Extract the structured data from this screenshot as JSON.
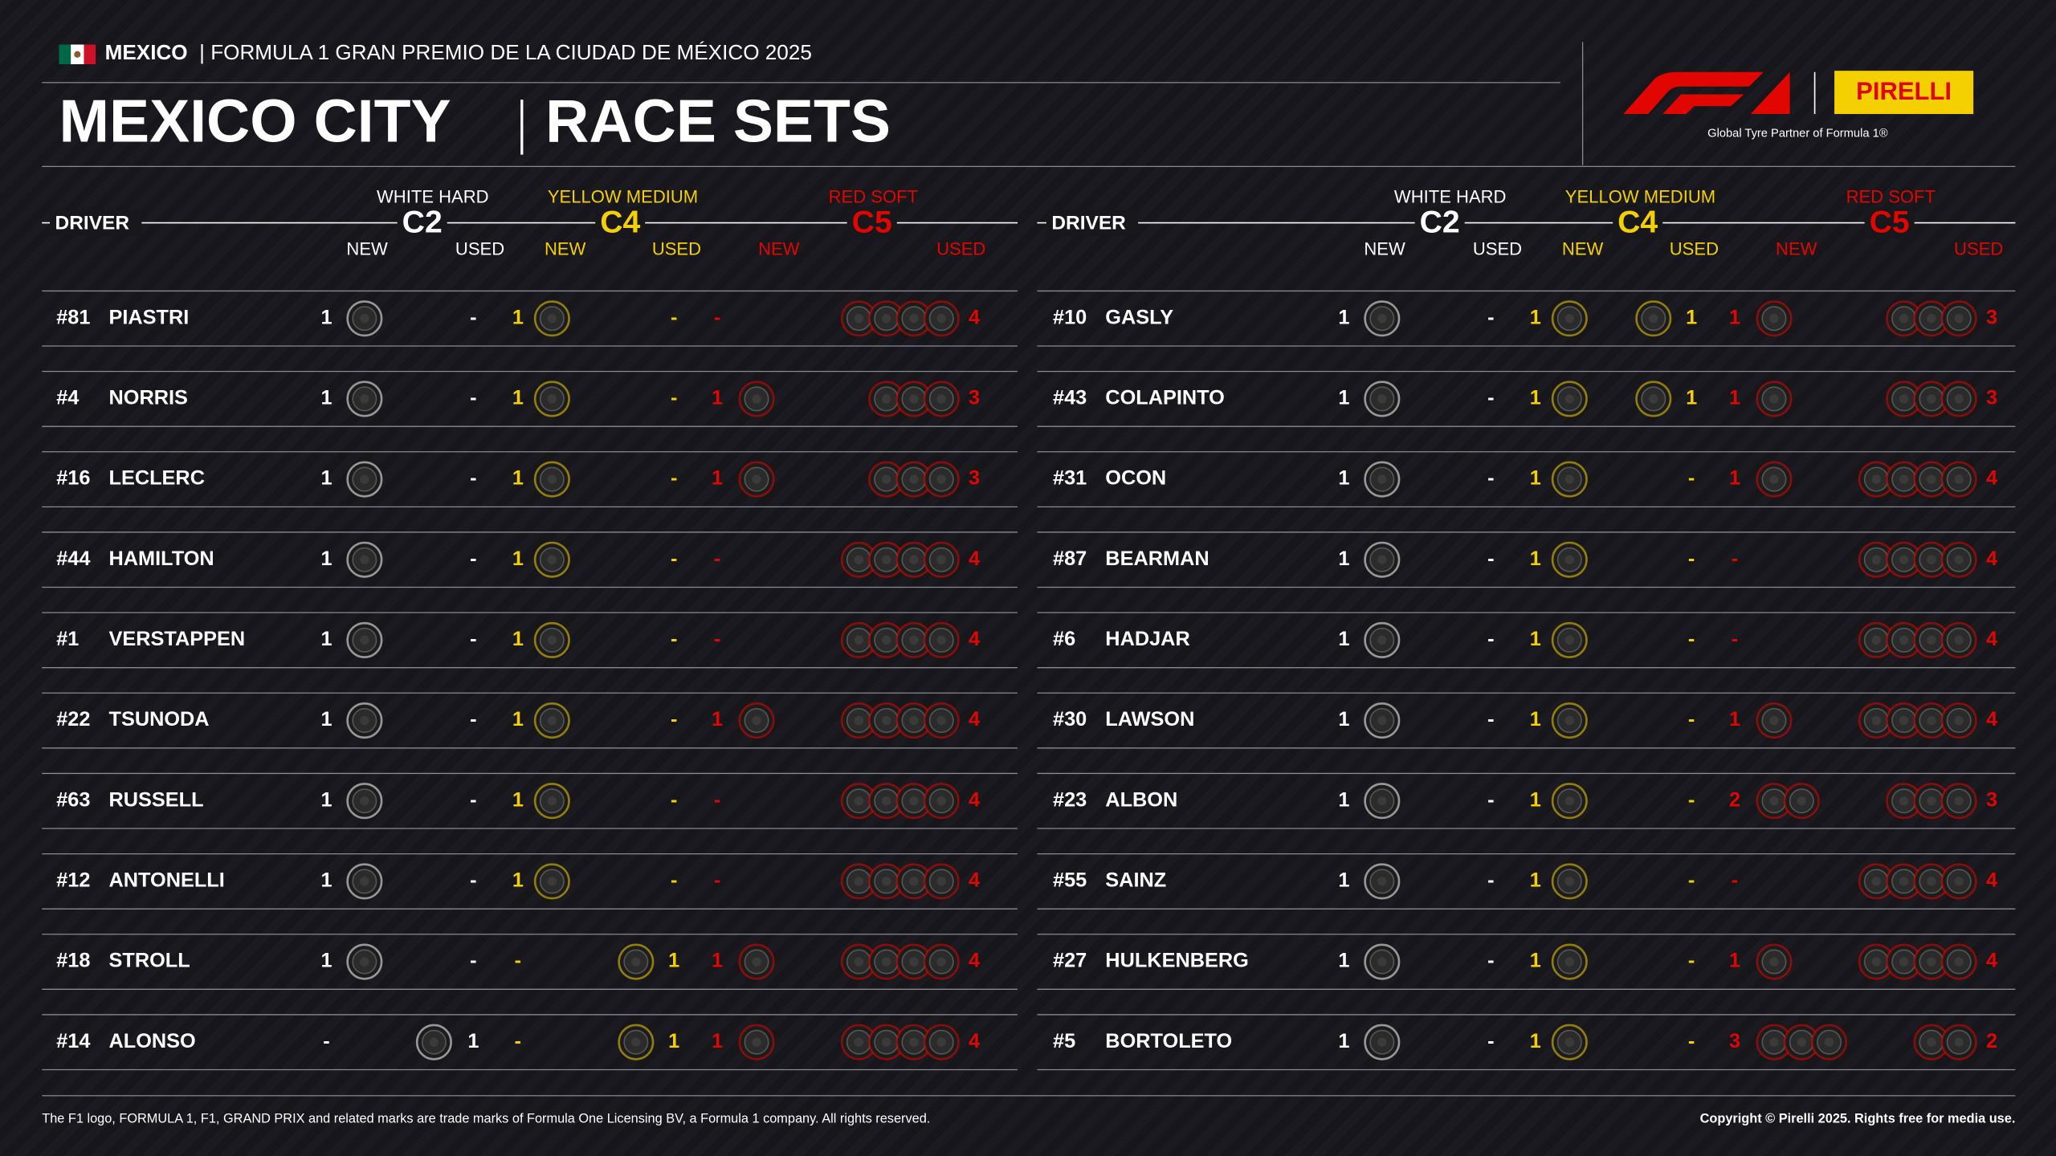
{
  "header": {
    "country": "MEXICO",
    "event": "| FORMULA 1 GRAN PREMIO DE LA CIUDAD DE MÉXICO 2025",
    "title": "MEXICO CITY",
    "subtitle": "RACE SETS",
    "brand": "PIRELLI",
    "partner": "Global Tyre Partner of Formula 1®"
  },
  "columns": {
    "driver": "DRIVER",
    "new": "NEW",
    "used": "USED",
    "compounds": [
      {
        "label": "WHITE HARD",
        "code": "C2",
        "color": "#ffffff"
      },
      {
        "label": "YELLOW MEDIUM",
        "code": "C4",
        "color": "#f5d000"
      },
      {
        "label": "RED SOFT",
        "code": "C5",
        "color": "#e10600"
      }
    ]
  },
  "tables": [
    {
      "rows": [
        {
          "number": "#81",
          "name": "PIASTRI",
          "sets": [
            "1",
            "-",
            "1",
            "-",
            "-",
            "4"
          ]
        },
        {
          "number": "#4",
          "name": "NORRIS",
          "sets": [
            "1",
            "-",
            "1",
            "-",
            "1",
            "3"
          ]
        },
        {
          "number": "#16",
          "name": "LECLERC",
          "sets": [
            "1",
            "-",
            "1",
            "-",
            "1",
            "3"
          ]
        },
        {
          "number": "#44",
          "name": "HAMILTON",
          "sets": [
            "1",
            "-",
            "1",
            "-",
            "-",
            "4"
          ]
        },
        {
          "number": "#1",
          "name": "VERSTAPPEN",
          "sets": [
            "1",
            "-",
            "1",
            "-",
            "-",
            "4"
          ]
        },
        {
          "number": "#22",
          "name": "TSUNODA",
          "sets": [
            "1",
            "-",
            "1",
            "-",
            "1",
            "4"
          ]
        },
        {
          "number": "#63",
          "name": "RUSSELL",
          "sets": [
            "1",
            "-",
            "1",
            "-",
            "-",
            "4"
          ]
        },
        {
          "number": "#12",
          "name": "ANTONELLI",
          "sets": [
            "1",
            "-",
            "1",
            "-",
            "-",
            "4"
          ]
        },
        {
          "number": "#18",
          "name": "STROLL",
          "sets": [
            "1",
            "-",
            "-",
            "1",
            "1",
            "4"
          ]
        },
        {
          "number": "#14",
          "name": "ALONSO",
          "sets": [
            "-",
            "1",
            "-",
            "1",
            "1",
            "4"
          ]
        }
      ]
    },
    {
      "rows": [
        {
          "number": "#10",
          "name": "GASLY",
          "sets": [
            "1",
            "-",
            "1",
            "1",
            "1",
            "3"
          ]
        },
        {
          "number": "#43",
          "name": "COLAPINTO",
          "sets": [
            "1",
            "-",
            "1",
            "1",
            "1",
            "3"
          ]
        },
        {
          "number": "#31",
          "name": "OCON",
          "sets": [
            "1",
            "-",
            "1",
            "-",
            "1",
            "4"
          ]
        },
        {
          "number": "#87",
          "name": "BEARMAN",
          "sets": [
            "1",
            "-",
            "1",
            "-",
            "-",
            "4"
          ]
        },
        {
          "number": "#6",
          "name": "HADJAR",
          "sets": [
            "1",
            "-",
            "1",
            "-",
            "-",
            "4"
          ]
        },
        {
          "number": "#30",
          "name": "LAWSON",
          "sets": [
            "1",
            "-",
            "1",
            "-",
            "1",
            "4"
          ]
        },
        {
          "number": "#23",
          "name": "ALBON",
          "sets": [
            "1",
            "-",
            "1",
            "-",
            "2",
            "3"
          ]
        },
        {
          "number": "#55",
          "name": "SAINZ",
          "sets": [
            "1",
            "-",
            "1",
            "-",
            "-",
            "4"
          ]
        },
        {
          "number": "#27",
          "name": "HULKENBERG",
          "sets": [
            "1",
            "-",
            "1",
            "-",
            "1",
            "4"
          ]
        },
        {
          "number": "#5",
          "name": "BORTOLETO",
          "sets": [
            "1",
            "-",
            "1",
            "-",
            "3",
            "2"
          ]
        }
      ]
    }
  ],
  "footer": {
    "left": "The F1 logo, FORMULA 1, F1, GRAND PRIX and related marks are trade marks of Formula One Licensing BV, a Formula 1 company. All rights reserved.",
    "right": "Copyright © Pirelli 2025. Rights free for media use."
  }
}
